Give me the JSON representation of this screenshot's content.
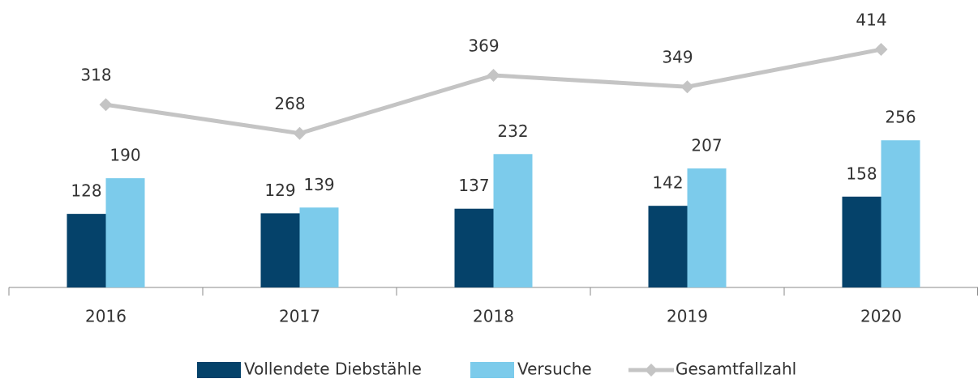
{
  "chart_data": {
    "type": "bar",
    "categories": [
      "2016",
      "2017",
      "2018",
      "2019",
      "2020"
    ],
    "series": [
      {
        "name": "Vollendete Diebstähle",
        "color": "#05426a",
        "values": [
          128,
          129,
          137,
          142,
          158
        ]
      },
      {
        "name": "Versuche",
        "color": "#7ccbeb",
        "values": [
          190,
          139,
          232,
          207,
          256
        ]
      },
      {
        "name": "Gesamtfallzahl",
        "type": "line",
        "color": "#c4c4c4",
        "values": [
          318,
          268,
          369,
          349,
          414
        ]
      }
    ],
    "ylim": [
      0,
      500
    ],
    "grid": false,
    "legend": "bottom"
  }
}
